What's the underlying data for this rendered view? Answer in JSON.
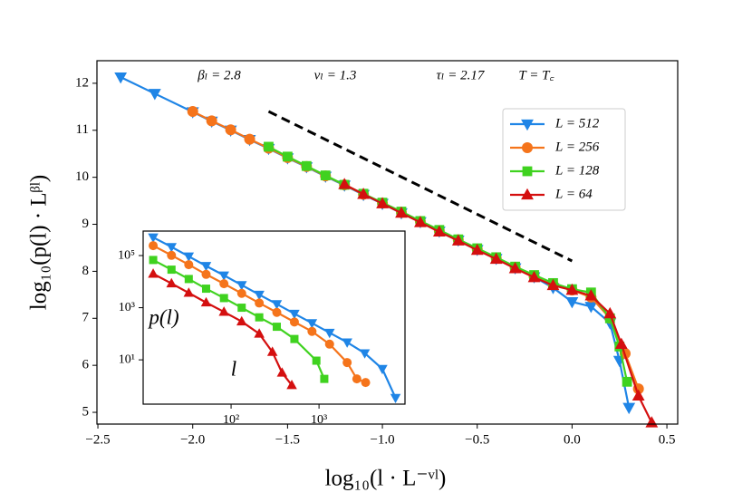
{
  "chart_data": [
    {
      "type": "line",
      "xlabel": "log₁₀(l · L⁻ᵛˡ)",
      "ylabel": "log₁₀(p(l) · Lᵝˡ)",
      "annotations": [
        "βₗ = 2.8",
        "vₗ = 1.3",
        "τₗ = 2.17",
        "T = T꜀"
      ],
      "xlim": [
        -2.505,
        0.557
      ],
      "ylim": [
        4.75,
        12.48
      ],
      "xticks": [
        {
          "value": -2.5,
          "label": "−2.5"
        },
        {
          "value": -2.0,
          "label": "−2.0"
        },
        {
          "value": -1.5,
          "label": "−1.5"
        },
        {
          "value": -1.0,
          "label": "−1.0"
        },
        {
          "value": -0.5,
          "label": "−0.5"
        },
        {
          "value": 0.0,
          "label": "0.0"
        },
        0.5
      ],
      "yticks": [
        5,
        6,
        7,
        8,
        9,
        10,
        11,
        12
      ],
      "legend": "upper right",
      "reference_line": {
        "x": [
          -1.6,
          0.0
        ],
        "y": [
          11.4,
          8.22
        ],
        "color": "#000000",
        "style": "dashed"
      },
      "series": [
        {
          "name": "L = 512",
          "color": "#1f85e6",
          "marker": "v",
          "x": [
            -2.38,
            -2.2,
            -2.0,
            -1.9,
            -1.8,
            -1.7,
            -1.6,
            -1.5,
            -1.4,
            -1.3,
            -1.2,
            -1.1,
            -1.0,
            -0.9,
            -0.8,
            -0.7,
            -0.6,
            -0.5,
            -0.4,
            -0.3,
            -0.2,
            -0.1,
            0.0,
            0.1,
            0.2,
            0.25,
            0.3
          ],
          "values": [
            12.13,
            11.78,
            11.39,
            11.19,
            11.0,
            10.8,
            10.61,
            10.41,
            10.22,
            10.02,
            9.83,
            9.63,
            9.44,
            9.24,
            9.05,
            8.85,
            8.66,
            8.46,
            8.27,
            8.07,
            7.88,
            7.65,
            7.35,
            7.25,
            6.9,
            6.1,
            5.1
          ]
        },
        {
          "name": "L = 256",
          "color": "#f5741b",
          "marker": "o",
          "x": [
            -2.0,
            -1.9,
            -1.8,
            -1.7,
            -1.6,
            -1.5,
            -1.4,
            -1.3,
            -1.2,
            -1.1,
            -1.0,
            -0.9,
            -0.8,
            -0.7,
            -0.6,
            -0.5,
            -0.4,
            -0.3,
            -0.2,
            -0.1,
            0.0,
            0.1,
            0.2,
            0.28,
            0.35
          ],
          "values": [
            11.4,
            11.2,
            11.01,
            10.81,
            10.62,
            10.42,
            10.23,
            10.03,
            9.84,
            9.64,
            9.45,
            9.25,
            9.06,
            8.86,
            8.67,
            8.47,
            8.28,
            8.08,
            7.89,
            7.72,
            7.6,
            7.45,
            7.0,
            6.25,
            5.5
          ]
        },
        {
          "name": "L = 128",
          "color": "#3fd21f",
          "marker": "s",
          "x": [
            -1.6,
            -1.5,
            -1.4,
            -1.3,
            -1.2,
            -1.1,
            -1.0,
            -0.9,
            -0.8,
            -0.7,
            -0.6,
            -0.5,
            -0.4,
            -0.3,
            -0.2,
            -0.1,
            0.0,
            0.1,
            0.2,
            0.25,
            0.29
          ],
          "values": [
            10.65,
            10.44,
            10.24,
            10.04,
            9.84,
            9.65,
            9.46,
            9.27,
            9.07,
            8.88,
            8.68,
            8.49,
            8.3,
            8.1,
            7.92,
            7.75,
            7.62,
            7.55,
            7.0,
            6.4,
            5.65
          ]
        },
        {
          "name": "L = 64",
          "color": "#d40f0f",
          "marker": "^",
          "x": [
            -1.2,
            -1.1,
            -1.0,
            -0.9,
            -0.8,
            -0.7,
            -0.6,
            -0.5,
            -0.4,
            -0.3,
            -0.2,
            -0.1,
            0.0,
            0.1,
            0.2,
            0.26,
            0.35,
            0.42
          ],
          "values": [
            9.85,
            9.64,
            9.44,
            9.24,
            9.04,
            8.84,
            8.65,
            8.45,
            8.26,
            8.06,
            7.87,
            7.7,
            7.6,
            7.48,
            7.1,
            6.45,
            5.35,
            4.78
          ]
        }
      ]
    },
    {
      "type": "line",
      "xlabel": "l",
      "ylabel": "p(l)",
      "xscale": "log",
      "yscale": "log",
      "xlim": [
        10,
        9500
      ],
      "ylim": [
        0.2,
        870000
      ],
      "xticks": [
        {
          "value": 100,
          "label": "10²"
        },
        {
          "value": 1000,
          "label": "10³"
        }
      ],
      "yticks": [
        {
          "value": 10,
          "label": "10¹"
        },
        {
          "value": 1000,
          "label": "10³"
        },
        {
          "value": 100000,
          "label": "10⁵"
        }
      ],
      "series": [
        {
          "name": "L = 512",
          "color": "#1f85e6",
          "marker": "v",
          "x": [
            13,
            21,
            33,
            52,
            83,
            132,
            209,
            331,
            525,
            832,
            1318,
            2089,
            3311,
            5248,
            7413
          ],
          "values": [
            500000,
            214000,
            93000,
            40000,
            17400,
            7400,
            3160,
            1380,
            590,
            257,
            110,
            47,
            18,
            4.5,
            0.35
          ]
        },
        {
          "name": "L = 256",
          "color": "#f5741b",
          "marker": "o",
          "x": [
            13,
            21,
            33,
            52,
            83,
            132,
            209,
            331,
            525,
            832,
            1318,
            2089,
            2692,
            3388
          ],
          "values": [
            240000,
            102000,
            44700,
            19000,
            8300,
            3550,
            1510,
            660,
            282,
            123,
            40,
            7.9,
            1.86,
            1.35
          ]
        },
        {
          "name": "L = 128",
          "color": "#3fd21f",
          "marker": "s",
          "x": [
            13,
            21,
            33,
            52,
            83,
            132,
            209,
            331,
            525,
            933,
            1148
          ],
          "values": [
            67600,
            28800,
            12600,
            5370,
            2340,
            1000,
            427,
            186,
            63,
            9.3,
            1.86
          ]
        },
        {
          "name": "L = 64",
          "color": "#d40f0f",
          "marker": "^",
          "x": [
            13,
            21,
            33,
            52,
            83,
            132,
            209,
            295,
            380,
            490
          ],
          "values": [
            20000,
            8500,
            3700,
            1580,
            690,
            295,
            100,
            20,
            3.2,
            1.07
          ]
        }
      ]
    }
  ]
}
